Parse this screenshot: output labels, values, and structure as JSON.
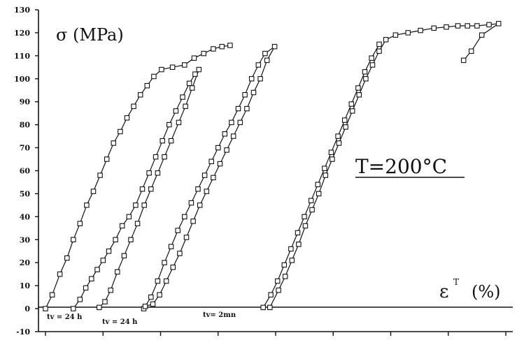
{
  "chart_data": {
    "type": "scatter",
    "title": "",
    "ylabel": "σ (MPa)",
    "xlabel": "ε",
    "xlabel_superscript": "T",
    "xlabel_unit": "(%)",
    "annotation": "T=200°C",
    "ylim": [
      -10,
      130
    ],
    "yticks": [
      "-10",
      "0",
      "10",
      "20",
      "30",
      "40",
      "50",
      "60",
      "70",
      "80",
      "90",
      "100",
      "110",
      "120",
      "130"
    ],
    "grid": false,
    "legend": "none",
    "notes": [
      "tv = 24 h",
      "tv = 24 h",
      "tv= 2mn"
    ],
    "series": [
      {
        "points": [
          [
            0.0,
            0
          ],
          [
            0.14,
            6
          ],
          [
            0.3,
            15
          ],
          [
            0.45,
            22
          ],
          [
            0.58,
            30
          ],
          [
            0.72,
            37
          ],
          [
            0.86,
            45
          ],
          [
            1.0,
            51
          ],
          [
            1.14,
            58
          ],
          [
            1.28,
            65
          ],
          [
            1.42,
            72
          ],
          [
            1.56,
            77
          ],
          [
            1.7,
            83
          ],
          [
            1.84,
            88
          ],
          [
            1.98,
            93
          ],
          [
            2.12,
            97
          ],
          [
            2.26,
            101
          ],
          [
            2.42,
            104
          ],
          [
            2.65,
            105
          ],
          [
            2.9,
            106
          ],
          [
            3.1,
            109
          ],
          [
            3.3,
            111
          ],
          [
            3.5,
            113
          ],
          [
            3.68,
            114
          ],
          [
            3.85,
            114.5
          ]
        ]
      },
      {
        "points": [
          [
            0.58,
            0
          ],
          [
            0.72,
            4
          ],
          [
            0.84,
            9
          ],
          [
            0.96,
            13
          ],
          [
            1.08,
            17
          ],
          [
            1.2,
            21
          ],
          [
            1.32,
            25
          ],
          [
            1.46,
            30
          ],
          [
            1.6,
            36
          ],
          [
            1.74,
            40
          ],
          [
            1.88,
            45
          ],
          [
            2.02,
            52
          ],
          [
            2.16,
            59
          ],
          [
            2.3,
            66
          ],
          [
            2.44,
            73
          ],
          [
            2.58,
            80
          ],
          [
            2.72,
            86
          ],
          [
            2.86,
            92
          ],
          [
            3.0,
            98
          ],
          [
            3.12,
            102
          ],
          [
            3.2,
            104
          ],
          [
            3.06,
            96
          ],
          [
            2.92,
            88
          ],
          [
            2.78,
            81
          ],
          [
            2.62,
            73
          ],
          [
            2.48,
            66
          ],
          [
            2.34,
            59
          ],
          [
            2.2,
            52
          ],
          [
            2.06,
            45
          ],
          [
            1.92,
            37
          ],
          [
            1.78,
            30
          ],
          [
            1.64,
            23
          ],
          [
            1.5,
            16
          ],
          [
            1.36,
            8
          ],
          [
            1.24,
            3
          ],
          [
            1.12,
            0.5
          ]
        ]
      },
      {
        "points": [
          [
            2.05,
            0
          ],
          [
            2.2,
            5
          ],
          [
            2.34,
            12
          ],
          [
            2.48,
            20
          ],
          [
            2.62,
            27
          ],
          [
            2.76,
            34
          ],
          [
            2.9,
            40
          ],
          [
            3.04,
            46
          ],
          [
            3.18,
            52
          ],
          [
            3.32,
            58
          ],
          [
            3.46,
            64
          ],
          [
            3.6,
            70
          ],
          [
            3.74,
            76
          ],
          [
            3.88,
            81
          ],
          [
            4.02,
            87
          ],
          [
            4.16,
            93
          ],
          [
            4.3,
            100
          ],
          [
            4.44,
            106
          ],
          [
            4.58,
            111
          ],
          [
            4.78,
            114
          ],
          [
            4.62,
            108
          ],
          [
            4.48,
            100
          ],
          [
            4.34,
            94
          ],
          [
            4.2,
            87
          ],
          [
            4.06,
            81
          ],
          [
            3.92,
            75
          ],
          [
            3.78,
            69
          ],
          [
            3.64,
            63
          ],
          [
            3.5,
            57
          ],
          [
            3.36,
            51
          ],
          [
            3.22,
            45
          ],
          [
            3.08,
            38
          ],
          [
            2.94,
            31
          ],
          [
            2.8,
            24
          ],
          [
            2.66,
            18
          ],
          [
            2.52,
            12
          ],
          [
            2.38,
            6
          ],
          [
            2.24,
            2
          ],
          [
            2.08,
            1
          ]
        ]
      },
      {
        "points": [
          [
            4.68,
            0.5
          ],
          [
            4.86,
            8
          ],
          [
            5.0,
            14
          ],
          [
            5.14,
            21
          ],
          [
            5.28,
            28
          ],
          [
            5.42,
            36
          ],
          [
            5.56,
            43
          ],
          [
            5.7,
            50
          ],
          [
            5.84,
            58
          ],
          [
            5.98,
            65
          ],
          [
            6.12,
            72
          ],
          [
            6.26,
            79
          ],
          [
            6.4,
            86
          ],
          [
            6.54,
            93
          ],
          [
            6.68,
            100
          ],
          [
            6.82,
            106
          ],
          [
            6.96,
            112
          ],
          [
            7.1,
            117
          ],
          [
            7.3,
            119
          ],
          [
            7.56,
            120
          ],
          [
            7.82,
            121
          ],
          [
            8.1,
            122
          ],
          [
            8.36,
            122.5
          ],
          [
            8.6,
            123
          ],
          [
            8.8,
            123
          ],
          [
            9.0,
            123
          ],
          [
            9.25,
            123.5
          ],
          [
            9.45,
            124
          ],
          [
            9.1,
            119
          ],
          [
            8.88,
            112
          ],
          [
            8.72,
            108
          ]
        ]
      },
      {
        "points": [
          [
            4.54,
            0.5
          ],
          [
            4.7,
            6
          ],
          [
            4.84,
            12
          ],
          [
            4.98,
            19
          ],
          [
            5.12,
            26
          ],
          [
            5.26,
            33
          ],
          [
            5.4,
            40
          ],
          [
            5.54,
            47
          ],
          [
            5.68,
            54
          ],
          [
            5.82,
            61
          ],
          [
            5.96,
            68
          ],
          [
            6.1,
            75
          ],
          [
            6.24,
            82
          ],
          [
            6.38,
            89
          ],
          [
            6.52,
            96
          ],
          [
            6.66,
            103
          ],
          [
            6.8,
            109
          ],
          [
            6.96,
            115
          ]
        ]
      }
    ]
  }
}
